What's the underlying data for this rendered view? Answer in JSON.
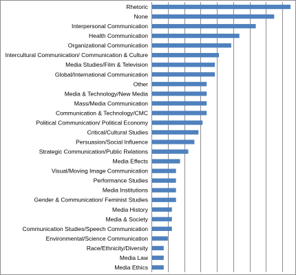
{
  "chart_data": {
    "type": "bar",
    "orientation": "horizontal",
    "categories": [
      "Rhetoric",
      "None",
      "Interpersonal Communication",
      "Health Communication",
      "Organizational Communication",
      "Intercultural Communication/ Communication & Culture",
      "Media Studies/Film & Television",
      "Global/International Communication",
      "Other",
      "Media & Technology/New Media",
      "Mass/Media  Communication",
      "Communication & Technology/CMC",
      "Political Communication/ Political Economy",
      "Critical/Cultural Studies",
      "Persuasion/Social Influence",
      "Strategic Communication/Public Relations",
      "Media Effects",
      "Visual/Moving Image Communication",
      "Performance Studies",
      "Media Institutions",
      "Gender & Communication/ Feminist Studies",
      "Media History",
      "Media & Society",
      "Communication Studies/Speech Communication",
      "Environmental/Science Communication",
      "Race/Ethnicity/Diversity",
      "Media Law",
      "Media Ethics"
    ],
    "values": [
      34,
      30,
      25.5,
      21.5,
      19.5,
      16.5,
      15.5,
      15.5,
      13.5,
      13.5,
      13.5,
      13.5,
      12.5,
      11.5,
      10.5,
      9,
      7,
      6,
      6,
      6,
      6,
      5,
      5,
      5,
      4,
      3,
      3,
      3
    ],
    "xlim": [
      0,
      35
    ],
    "x_gridline_step": 4,
    "grid": "vertical",
    "bar_color": "#4f81bd",
    "gridline_color": "#8c8c8c",
    "tick_labels_shown": false,
    "title": "",
    "xlabel": "",
    "ylabel": ""
  }
}
